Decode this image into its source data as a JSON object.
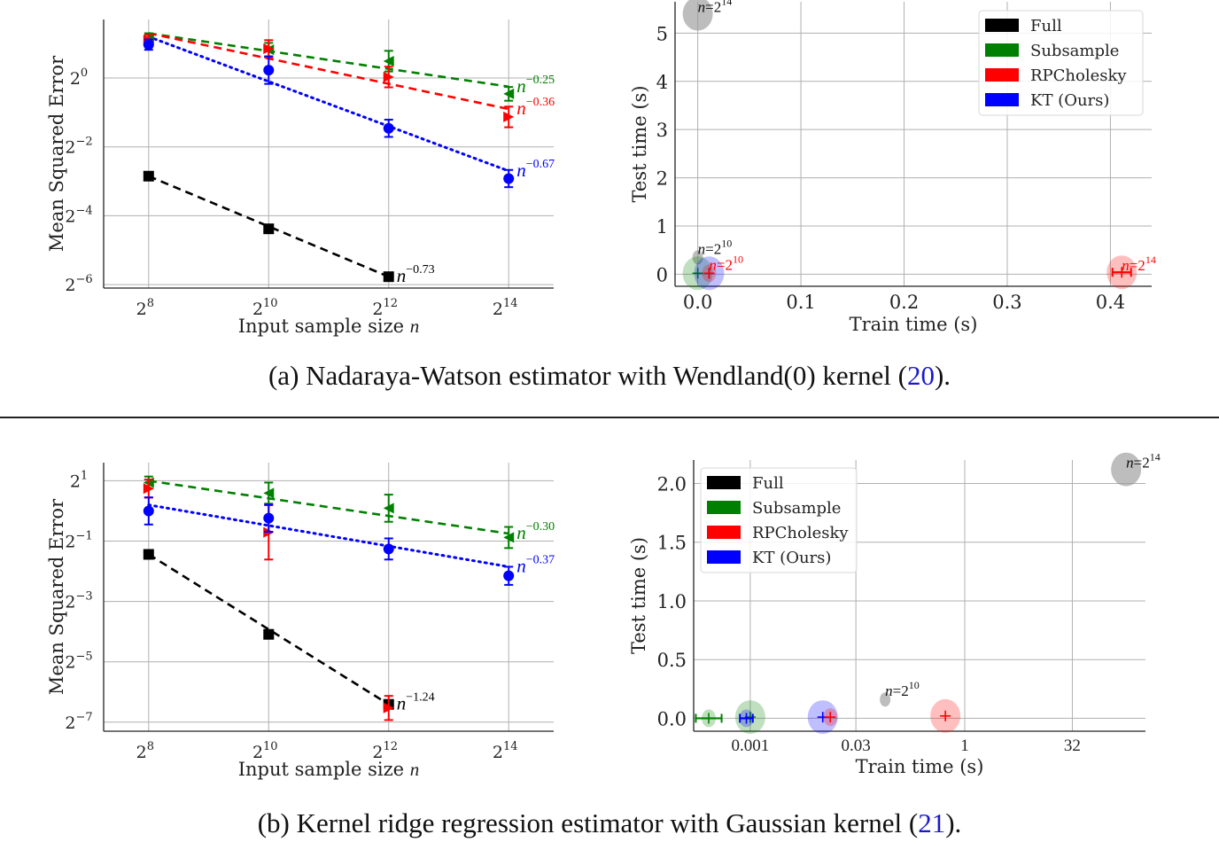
{
  "figure": {
    "panels": [
      {
        "caption_prefix": "(a) Nadaraya-Watson estimator with Wendland",
        "caption_paren": "(0)",
        "caption_mid": " kernel (",
        "caption_ref": "20",
        "caption_suffix": ")."
      },
      {
        "caption_prefix": "(b) Kernel ridge regression estimator with Gaussian kernel (",
        "caption_paren": "",
        "caption_mid": "",
        "caption_ref": "21",
        "caption_suffix": ")."
      }
    ]
  },
  "colors": {
    "Full": "#000000",
    "Subsample": "#008000",
    "RPCholesky": "#ff0000",
    "KT": "#0000ff",
    "grid": "#b0b0b0",
    "fullBubble": "#9a9a9a"
  },
  "chart_data": [
    {
      "id": "a-left",
      "type": "line",
      "title": "",
      "xlabel": "Input sample size n",
      "ylabel": "Mean Squared Error",
      "xscale": "log2",
      "yscale": "log2",
      "x_log2": [
        8,
        10,
        12,
        14
      ],
      "x_tick_labels": [
        "2^8",
        "2^10",
        "2^12",
        "2^14"
      ],
      "y_tick_log2": [
        0,
        -2,
        -4,
        -6
      ],
      "y_tick_labels": [
        "2^0",
        "2^-2",
        "2^-4",
        "2^-6"
      ],
      "ylim_log2": [
        -6.1,
        1.7
      ],
      "grid": true,
      "series": [
        {
          "name": "Full",
          "key": "Full",
          "marker": "square",
          "linestyle": "dashed",
          "y_log2": [
            -2.85,
            -4.38,
            -5.77,
            null
          ],
          "err_log2": [
            0.05,
            0.05,
            0.05,
            null
          ],
          "rate_label": "-0.73"
        },
        {
          "name": "Subsample",
          "key": "Subsample",
          "marker": "triangle-left",
          "linestyle": "dashed",
          "y_log2": [
            1.15,
            0.82,
            0.49,
            -0.46
          ],
          "err_log2": [
            0.15,
            0.2,
            0.3,
            0.2
          ],
          "rate_label": "-0.25"
        },
        {
          "name": "RPCholesky",
          "key": "RPCholesky",
          "marker": "triangle-right",
          "linestyle": "dashed",
          "y_log2": [
            1.1,
            0.85,
            0.03,
            -1.13
          ],
          "err_log2": [
            0.15,
            0.25,
            0.3,
            0.3
          ],
          "rate_label": "-0.36"
        },
        {
          "name": "KT (Ours)",
          "key": "KT",
          "marker": "circle",
          "linestyle": "dotted",
          "y_log2": [
            0.97,
            0.23,
            -1.46,
            -2.92
          ],
          "err_log2": [
            0.15,
            0.4,
            0.25,
            0.25
          ],
          "rate_label": "-0.67"
        }
      ],
      "fit_lines_log2": {
        "Full": [
          [
            8,
            -2.85
          ],
          [
            12,
            -5.77
          ]
        ],
        "Subsample": [
          [
            8,
            1.3
          ],
          [
            14,
            -0.25
          ]
        ],
        "RPCholesky": [
          [
            8,
            1.3
          ],
          [
            14,
            -0.9
          ]
        ],
        "KT": [
          [
            8,
            1.2
          ],
          [
            14,
            -2.7
          ]
        ]
      }
    },
    {
      "id": "a-right",
      "type": "scatter",
      "xlabel": "Train time (s)",
      "ylabel": "Test time (s)",
      "xlim": [
        -0.022,
        0.44
      ],
      "ylim": [
        -0.25,
        5.65
      ],
      "x_ticks": [
        0.0,
        0.1,
        0.2,
        0.3,
        0.4
      ],
      "x_tick_labels": [
        "0.0",
        "0.1",
        "0.2",
        "0.3",
        "0.4"
      ],
      "y_ticks": [
        0,
        1,
        2,
        3,
        4,
        5
      ],
      "y_tick_labels": [
        "0",
        "1",
        "2",
        "3",
        "4",
        "5"
      ],
      "grid": true,
      "legend": {
        "position": "top-right",
        "entries": [
          "Full",
          "Subsample",
          "RPCholesky",
          "KT (Ours)"
        ]
      },
      "points": [
        {
          "series": "Full",
          "x": 0.0,
          "y": 5.4,
          "size": "large",
          "label": "n=2^14",
          "label_color": "Full"
        },
        {
          "series": "Full",
          "x": 0.0,
          "y": 0.35,
          "size": "small",
          "label": "n=2^10",
          "label_color": "Full"
        },
        {
          "series": "Subsample",
          "x": 0.0,
          "y": 0.02,
          "size": "large"
        },
        {
          "series": "KT",
          "x": 0.011,
          "y": 0.02,
          "size": "large"
        },
        {
          "series": "RPCholesky",
          "x": 0.011,
          "y": 0.02,
          "size": "small",
          "label": "n=2^10",
          "label_color": "RPCholesky"
        },
        {
          "series": "RPCholesky",
          "x": 0.411,
          "y": 0.04,
          "size": "large",
          "label": "n=2^14",
          "label_color": "RPCholesky",
          "xerr": 0.009
        }
      ]
    },
    {
      "id": "b-left",
      "type": "line",
      "title": "",
      "xlabel": "Input sample size n",
      "ylabel": "Mean Squared Error",
      "xscale": "log2",
      "yscale": "log2",
      "x_log2": [
        8,
        10,
        12,
        14
      ],
      "x_tick_labels": [
        "2^8",
        "2^10",
        "2^12",
        "2^14"
      ],
      "y_tick_log2": [
        1,
        -1,
        -3,
        -5,
        -7
      ],
      "y_tick_labels": [
        "2^1",
        "2^-1",
        "2^-3",
        "2^-5",
        "2^-7"
      ],
      "ylim_log2": [
        -7.3,
        1.6
      ],
      "grid": true,
      "series": [
        {
          "name": "Full",
          "key": "Full",
          "marker": "square",
          "linestyle": "dashed",
          "y_log2": [
            -1.44,
            -4.09,
            -6.41,
            null
          ],
          "err_log2": [
            0.05,
            0.05,
            0.05,
            null
          ],
          "rate_label": "-1.24"
        },
        {
          "name": "Subsample",
          "key": "Subsample",
          "marker": "triangle-left",
          "linestyle": "dashed",
          "y_log2": [
            0.94,
            0.59,
            0.09,
            -0.88
          ],
          "err_log2": [
            0.2,
            0.35,
            0.45,
            0.35
          ],
          "rate_label": "-0.30"
        },
        {
          "name": "RPCholesky",
          "key": "RPCholesky",
          "marker": "triangle-right",
          "linestyle": "dashed",
          "y_log2": [
            0.74,
            -0.71,
            -6.53,
            null
          ],
          "err_log2": [
            0.3,
            0.9,
            0.4,
            null
          ],
          "rate_label": ""
        },
        {
          "name": "KT (Ours)",
          "key": "KT",
          "marker": "circle",
          "linestyle": "dotted",
          "y_log2": [
            0.0,
            -0.24,
            -1.26,
            -2.15
          ],
          "err_log2": [
            0.45,
            0.45,
            0.35,
            0.3
          ],
          "rate_label": "-0.37"
        }
      ],
      "fit_lines_log2": {
        "Full": [
          [
            8,
            -1.44
          ],
          [
            12,
            -6.41
          ]
        ],
        "Subsample": [
          [
            8,
            1.0
          ],
          [
            14,
            -0.75
          ]
        ],
        "KT": [
          [
            8,
            0.2
          ],
          [
            14,
            -1.85
          ]
        ]
      }
    },
    {
      "id": "b-right",
      "type": "scatter",
      "xlabel": "Train time (s)",
      "ylabel": "Test time (s)",
      "xscale": "log2",
      "xlim_log2": [
        -12.6,
        8.4
      ],
      "ylim": [
        -0.11,
        2.2
      ],
      "x_ticks_log2": [
        -9.97,
        -5.06,
        0,
        5
      ],
      "x_tick_labels": [
        "0.001",
        "0.03",
        "1",
        "32"
      ],
      "y_ticks": [
        0.0,
        0.5,
        1.0,
        1.5,
        2.0
      ],
      "y_tick_labels": [
        "0.0",
        "0.5",
        "1.0",
        "1.5",
        "2.0"
      ],
      "grid": true,
      "legend": {
        "position": "top-left",
        "entries": [
          "Full",
          "Subsample",
          "RPCholesky",
          "KT (Ours)"
        ]
      },
      "points": [
        {
          "series": "Full",
          "x_log2": 7.5,
          "y": 2.12,
          "size": "large",
          "label": "n=2^14",
          "label_color": "Full"
        },
        {
          "series": "Full",
          "x_log2": -3.7,
          "y": 0.16,
          "size": "small",
          "label": "n=2^10",
          "label_color": "Full"
        },
        {
          "series": "Subsample",
          "x_log2": -11.9,
          "y": 0.0,
          "size": "small",
          "xerr_log2": 0.6
        },
        {
          "series": "Subsample",
          "x_log2": -9.97,
          "y": 0.01,
          "size": "large"
        },
        {
          "series": "KT",
          "x_log2": -10.15,
          "y": 0.0,
          "size": "small",
          "xerr_log2": 0.3
        },
        {
          "series": "KT",
          "x_log2": -6.6,
          "y": 0.01,
          "size": "large"
        },
        {
          "series": "RPCholesky",
          "x_log2": -6.25,
          "y": 0.01,
          "size": "small"
        },
        {
          "series": "RPCholesky",
          "x_log2": -0.9,
          "y": 0.02,
          "size": "large"
        }
      ]
    }
  ]
}
